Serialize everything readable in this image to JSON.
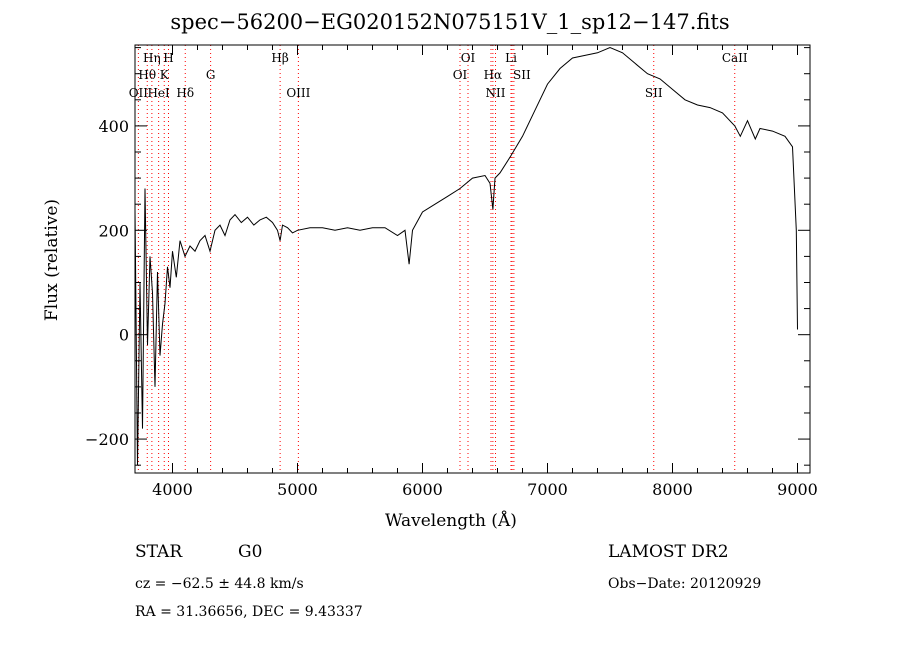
{
  "chart_data": {
    "type": "line",
    "title": "spec−56200−EG020152N075151V_1_sp12−147.fits",
    "xlabel": "Wavelength (Å)",
    "ylabel": "Flux (relative)",
    "xlim": [
      3700,
      9100
    ],
    "ylim": [
      -265,
      555
    ],
    "x_ticks": [
      4000,
      5000,
      6000,
      7000,
      8000,
      9000
    ],
    "y_ticks": [
      -200,
      0,
      200,
      400
    ],
    "grid": false,
    "line_color": "#000000",
    "marker_color": "#ff0000",
    "series": [
      {
        "x": [
          3700,
          3720,
          3740,
          3760,
          3780,
          3800,
          3820,
          3840,
          3860,
          3880,
          3900,
          3920,
          3940,
          3960,
          3980,
          4000,
          4030,
          4060,
          4100,
          4140,
          4180,
          4220,
          4260,
          4300,
          4340,
          4380,
          4420,
          4460,
          4500,
          4550,
          4600,
          4650,
          4700,
          4750,
          4800,
          4840,
          4861,
          4880,
          4920,
          4960,
          5000,
          5100,
          5200,
          5300,
          5400,
          5500,
          5600,
          5700,
          5800,
          5860,
          5893,
          5920,
          6000,
          6100,
          6200,
          6300,
          6400,
          6500,
          6540,
          6563,
          6580,
          6620,
          6700,
          6800,
          6900,
          7000,
          7100,
          7200,
          7300,
          7400,
          7500,
          7600,
          7700,
          7800,
          7900,
          8000,
          8100,
          8200,
          8300,
          8400,
          8498,
          8542,
          8600,
          8662,
          8700,
          8800,
          8900,
          8960,
          8990,
          9000
        ],
        "y": [
          240,
          -250,
          100,
          -180,
          280,
          -20,
          150,
          80,
          -100,
          120,
          -40,
          20,
          60,
          130,
          90,
          160,
          110,
          180,
          150,
          170,
          160,
          180,
          190,
          160,
          200,
          210,
          190,
          220,
          230,
          215,
          225,
          210,
          220,
          225,
          215,
          200,
          180,
          210,
          205,
          195,
          200,
          205,
          205,
          200,
          205,
          200,
          205,
          205,
          190,
          200,
          135,
          200,
          235,
          250,
          265,
          280,
          300,
          305,
          290,
          240,
          300,
          310,
          340,
          380,
          430,
          480,
          510,
          530,
          535,
          540,
          550,
          540,
          520,
          500,
          490,
          470,
          450,
          440,
          435,
          425,
          400,
          380,
          410,
          375,
          395,
          390,
          380,
          360,
          200,
          10
        ]
      }
    ],
    "lines": [
      {
        "name": "O II",
        "x": 3727
      },
      {
        "name": "Hθ",
        "x": 3798
      },
      {
        "name": "Hη",
        "x": 3835
      },
      {
        "name": "K",
        "x": 3934
      },
      {
        "name": "H",
        "x": 3968
      },
      {
        "name": "HeI",
        "x": 3889
      },
      {
        "name": "Hδ",
        "x": 4102
      },
      {
        "name": "G",
        "x": 4305
      },
      {
        "name": "Hβ",
        "x": 4861
      },
      {
        "name": "OIII",
        "x": 5007
      },
      {
        "name": "OI",
        "x": 6300
      },
      {
        "name": "OI",
        "x": 6364
      },
      {
        "name": "NII",
        "x": 6548
      },
      {
        "name": "Hα",
        "x": 6563
      },
      {
        "name": "NII",
        "x": 6584
      },
      {
        "name": "Li",
        "x": 6708
      },
      {
        "name": "SII",
        "x": 6717
      },
      {
        "name": "SII",
        "x": 6731
      },
      {
        "name": "SII",
        "x": 7850
      },
      {
        "name": "CaII",
        "x": 8498
      }
    ],
    "line_labels": [
      {
        "text": "Hη",
        "row": 1
      },
      {
        "text": "H",
        "row": 1
      },
      {
        "text": "OI",
        "row": 1
      },
      {
        "text": "Li",
        "row": 1
      },
      {
        "text": "Hβ",
        "row": 1
      },
      {
        "text": "CaII",
        "row": 1
      },
      {
        "text": "Hθ",
        "row": 2
      },
      {
        "text": "K",
        "row": 2
      },
      {
        "text": "G",
        "row": 2
      },
      {
        "text": "OI",
        "row": 2
      },
      {
        "text": "Hα",
        "row": 2
      },
      {
        "text": "SII",
        "row": 2
      },
      {
        "text": "OII",
        "row": 3
      },
      {
        "text": "HeI",
        "row": 3
      },
      {
        "text": "Hδ",
        "row": 3
      },
      {
        "text": "OIII",
        "row": 3
      },
      {
        "text": "NII",
        "row": 3
      },
      {
        "text": "SII",
        "row": 3
      }
    ]
  },
  "info": {
    "class": "STAR",
    "subclass": "G0",
    "survey": "LAMOST DR2",
    "cz": "cz = −62.5 ± 44.8 km/s",
    "obs_date": "Obs−Date: 20120929",
    "coords": "RA =  31.36656, DEC =    9.43337"
  }
}
